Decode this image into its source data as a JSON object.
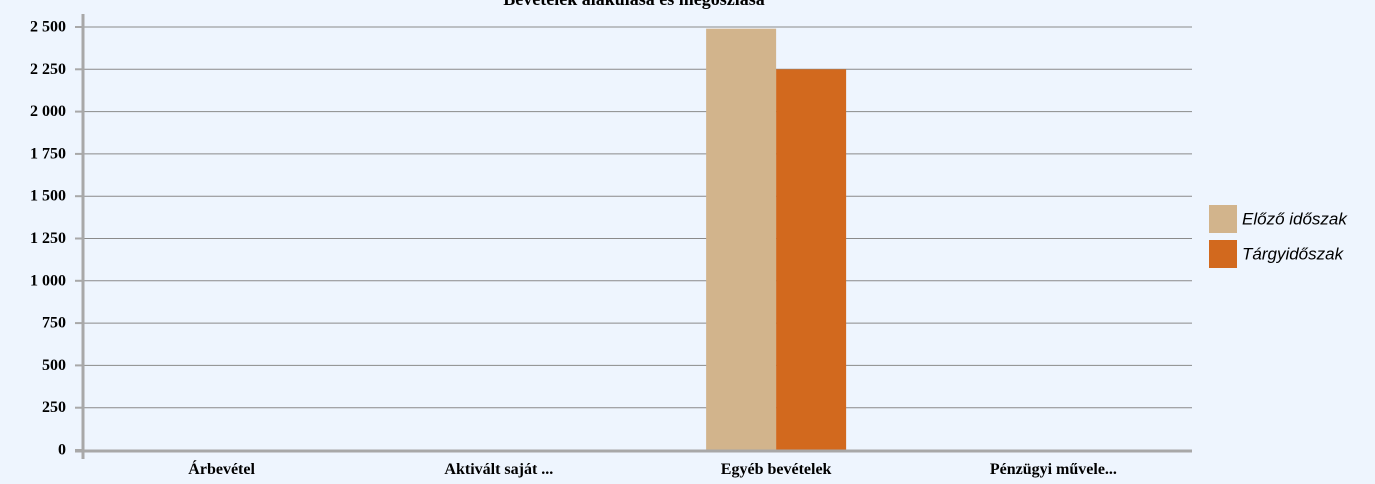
{
  "chart_data": {
    "type": "bar",
    "title": "Bevételek alakulása és megoszlása",
    "categories": [
      "Árbevétel",
      "Aktivált saját ...",
      "Egyéb bevételek",
      "Pénzügyi művele..."
    ],
    "series": [
      {
        "name": "Előző időszak",
        "color": "#d2b48c",
        "values": [
          0,
          0,
          2490,
          0
        ]
      },
      {
        "name": "Tárgyidőszak",
        "color": "#d2691e",
        "values": [
          0,
          0,
          2250,
          0
        ]
      }
    ],
    "y_ticks": [
      0,
      250,
      500,
      750,
      1000,
      1250,
      1500,
      1750,
      2000,
      2250,
      2500
    ],
    "y_tick_labels": [
      "0",
      "250",
      "500",
      "750",
      "1 000",
      "1 250",
      "1 500",
      "1 750",
      "2 000",
      "2 250",
      "2 500"
    ],
    "ylim": [
      0,
      2500
    ],
    "grid": true,
    "legend_position": "right"
  }
}
